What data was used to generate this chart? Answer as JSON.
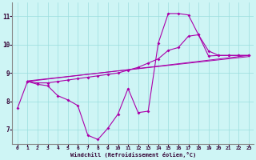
{
  "xlabel": "Windchill (Refroidissement éolien,°C)",
  "background_color": "#cef5f5",
  "line_color": "#aa00aa",
  "grid_color": "#99dddd",
  "xlim": [
    -0.5,
    23.5
  ],
  "ylim": [
    6.5,
    11.5
  ],
  "yticks": [
    7,
    8,
    9,
    10,
    11
  ],
  "xticks": [
    0,
    1,
    2,
    3,
    4,
    5,
    6,
    7,
    8,
    9,
    10,
    11,
    12,
    13,
    14,
    15,
    16,
    17,
    18,
    19,
    20,
    21,
    22,
    23
  ],
  "line_zigzag": {
    "x": [
      0,
      1,
      2,
      3,
      4,
      5,
      6,
      7,
      8,
      9,
      10,
      11,
      12,
      13,
      14,
      15,
      16,
      17,
      18,
      19,
      20,
      21,
      22,
      23
    ],
    "y": [
      7.75,
      8.7,
      8.6,
      8.55,
      8.2,
      8.05,
      7.85,
      6.8,
      6.65,
      7.05,
      7.55,
      8.45,
      7.6,
      7.65,
      10.05,
      11.1,
      11.1,
      11.05,
      10.35,
      9.6,
      9.62,
      9.62,
      9.62,
      9.62
    ]
  },
  "line_smooth1": {
    "x": [
      1,
      2,
      3,
      4,
      5,
      6,
      7,
      8,
      9,
      10,
      11,
      12,
      13,
      14,
      15,
      16,
      17,
      18,
      19,
      20,
      21,
      22,
      23
    ],
    "y": [
      8.7,
      8.65,
      8.65,
      8.7,
      8.75,
      8.8,
      8.85,
      8.9,
      8.95,
      9.0,
      9.1,
      9.2,
      9.35,
      9.5,
      9.8,
      9.9,
      10.3,
      10.35,
      9.78,
      9.62,
      9.62,
      9.62,
      9.62
    ]
  },
  "line_straight1": {
    "x": [
      1,
      23
    ],
    "y": [
      8.7,
      9.62
    ]
  },
  "line_straight2": {
    "x": [
      1,
      23
    ],
    "y": [
      8.7,
      9.62
    ]
  }
}
